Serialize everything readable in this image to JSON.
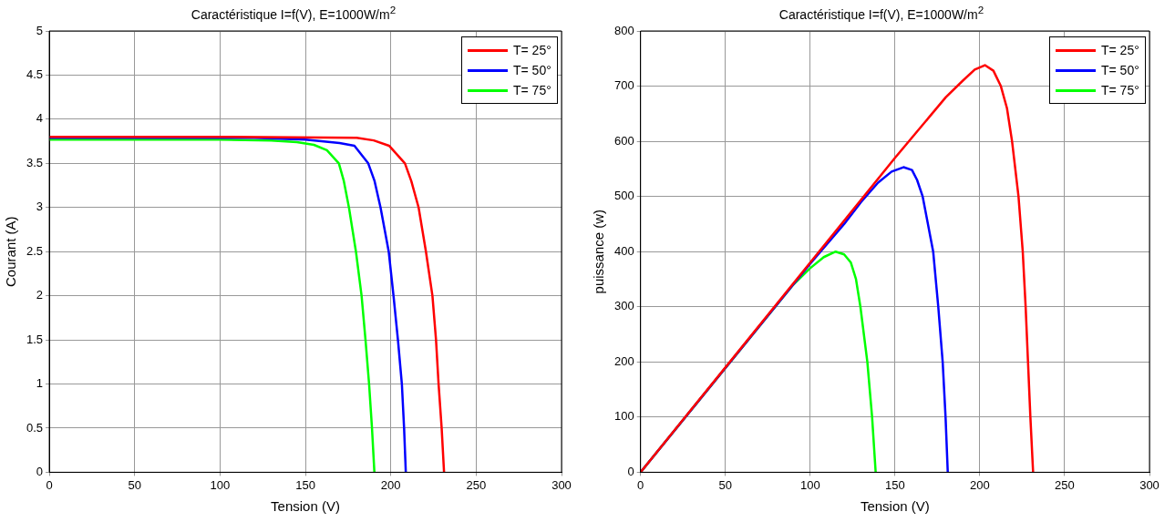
{
  "chart_data": [
    {
      "type": "line",
      "title": "Caractéristique I=f(V), E=1000W/m$^{2}$",
      "xlabel": "Tension (V)",
      "ylabel": "Courant (A)",
      "xlim": [
        0,
        300
      ],
      "xticks": [
        0,
        50,
        100,
        150,
        200,
        250,
        300
      ],
      "ylim": [
        0,
        5
      ],
      "yticks": [
        0,
        0.5,
        1,
        1.5,
        2,
        2.5,
        3,
        3.5,
        4,
        4.5,
        5
      ],
      "grid": true,
      "legend": "top right",
      "series": [
        {
          "name": "T= 25°",
          "color": "#ff0000",
          "x": [
            0,
            100,
            180,
            190,
            199,
            208.3,
            212,
            216.3,
            220.6,
            224.4,
            226.5,
            228,
            229.8,
            231.2
          ],
          "values": [
            3.8,
            3.8,
            3.79,
            3.76,
            3.7,
            3.5,
            3.3,
            3,
            2.5,
            2,
            1.5,
            1,
            0.5,
            0
          ]
        },
        {
          "name": "T= 50°",
          "color": "#0000ff",
          "x": [
            0,
            120,
            150,
            170,
            178.7,
            186.8,
            190.5,
            194,
            198.8,
            201.6,
            204.2,
            206.5,
            207.8,
            208.8
          ],
          "values": [
            3.79,
            3.79,
            3.77,
            3.73,
            3.7,
            3.5,
            3.3,
            3,
            2.5,
            2,
            1.5,
            1,
            0.5,
            0
          ]
        },
        {
          "name": "T= 75°",
          "color": "#00ff00",
          "x": [
            0,
            100,
            130,
            145,
            155,
            162.6,
            169.6,
            172.5,
            175.5,
            179.6,
            182.9,
            185.2,
            187.3,
            189,
            190.4
          ],
          "values": [
            3.77,
            3.77,
            3.76,
            3.74,
            3.71,
            3.65,
            3.5,
            3.3,
            3,
            2.5,
            2,
            1.5,
            1,
            0.5,
            0
          ]
        }
      ]
    },
    {
      "type": "line",
      "title": "Caractéristique I=f(V), E=1000W/m$^{2}$",
      "xlabel": "Tension (V)",
      "ylabel": "puissance (w)",
      "xlim": [
        0,
        300
      ],
      "xticks": [
        0,
        50,
        100,
        150,
        200,
        250,
        300
      ],
      "ylim": [
        0,
        800
      ],
      "yticks": [
        0,
        100,
        200,
        300,
        400,
        500,
        600,
        700,
        800
      ],
      "grid": true,
      "legend": "top right",
      "series": [
        {
          "name": "T= 25°",
          "color": "#ff0000",
          "x": [
            0,
            50,
            100,
            150,
            180,
            190,
            197,
            203,
            208,
            212.4,
            216,
            219,
            222.8,
            225.3,
            227,
            228.4,
            229.8,
            231.4
          ],
          "values": [
            0,
            190,
            380,
            570,
            680,
            710,
            730,
            738,
            728,
            700,
            660,
            600,
            500,
            400,
            300,
            200,
            100,
            0
          ]
        },
        {
          "name": "T= 50°",
          "color": "#0000ff",
          "x": [
            0,
            100,
            120,
            130,
            140,
            148,
            155,
            160,
            163,
            166.3,
            172.5,
            175.5,
            178.1,
            179.8,
            181.1
          ],
          "values": [
            0,
            378,
            450,
            490,
            525,
            545,
            553,
            548,
            530,
            500,
            400,
            300,
            200,
            100,
            0
          ]
        },
        {
          "name": "T= 75°",
          "color": "#00ff00",
          "x": [
            0,
            90,
            100,
            108,
            115,
            120,
            124,
            127,
            129.6,
            133.7,
            136.5,
            138.6
          ],
          "values": [
            0,
            340,
            370,
            390,
            400,
            395,
            380,
            350,
            300,
            200,
            100,
            0
          ]
        }
      ]
    }
  ]
}
